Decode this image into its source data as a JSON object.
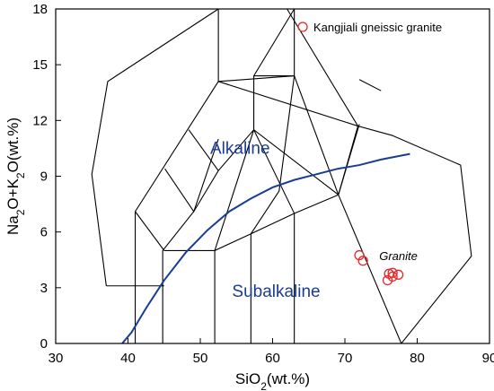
{
  "chart_data": {
    "type": "scatter",
    "title": "",
    "xlabel": {
      "prefix": "SiO",
      "sub": "2",
      "suffix": "(wt.%)"
    },
    "ylabel": {
      "parts": [
        [
          "Na",
          false
        ],
        [
          "2",
          true
        ],
        [
          "O+K",
          false
        ],
        [
          "2",
          true
        ],
        [
          "O(wt.%)",
          false
        ]
      ]
    },
    "xlim": [
      30,
      90
    ],
    "ylim": [
      0,
      18
    ],
    "xticks": [
      30,
      40,
      50,
      60,
      70,
      80,
      90
    ],
    "yticks": [
      0,
      3,
      6,
      9,
      12,
      15,
      18
    ],
    "grid": false,
    "legend": {
      "position": "top-right"
    },
    "colors": {
      "points": "#e8282a",
      "divider": "#1a3c96",
      "field_text": "#1a3c96",
      "lines": "#000000"
    },
    "series": [
      {
        "name": "Kangjiali gneissic granite",
        "marker": "open-circle",
        "points": [
          [
            72.0,
            4.75
          ],
          [
            72.5,
            4.45
          ],
          [
            75.9,
            3.4
          ],
          [
            76.1,
            3.75
          ],
          [
            76.6,
            3.6
          ],
          [
            76.6,
            3.8
          ],
          [
            77.4,
            3.7
          ]
        ]
      }
    ],
    "field_lines": [
      [
        [
          37,
          3.1
        ],
        [
          35,
          9.1
        ],
        [
          37.2,
          14.1
        ],
        [
          52.5,
          18
        ]
      ],
      [
        [
          37,
          3.1
        ],
        [
          45,
          3.1
        ]
      ],
      [
        [
          52.5,
          18
        ],
        [
          62,
          18
        ]
      ],
      [
        [
          62,
          18
        ],
        [
          71.8,
          11.7
        ],
        [
          76.5,
          11.2
        ],
        [
          86,
          9.6
        ],
        [
          87.5,
          4.7
        ],
        [
          77.8,
          0
        ]
      ],
      [
        [
          69.1,
          8
        ],
        [
          77.8,
          0
        ]
      ],
      [
        [
          41,
          0
        ],
        [
          41,
          7.1
        ],
        [
          52.5,
          14.1
        ],
        [
          71.8,
          11.7
        ]
      ],
      [
        [
          52.5,
          14.1
        ],
        [
          52.5,
          18
        ]
      ],
      [
        [
          44.8,
          0
        ],
        [
          44.8,
          5.0
        ],
        [
          49.1,
          7.1
        ],
        [
          52.5,
          9.3
        ],
        [
          57.4,
          11.5
        ],
        [
          69.1,
          8
        ],
        [
          71.8,
          11.7
        ]
      ],
      [
        [
          45.1,
          9.4
        ],
        [
          49.1,
          7.1
        ],
        [
          52.5,
          11.0
        ]
      ],
      [
        [
          48.4,
          11.5
        ],
        [
          52.5,
          9.3
        ]
      ],
      [
        [
          63,
          14.4
        ],
        [
          63,
          18
        ]
      ],
      [
        [
          57.4,
          11.5
        ],
        [
          57.4,
          14.4
        ],
        [
          63,
          18
        ]
      ],
      [
        [
          57.4,
          14.4
        ],
        [
          63,
          14.4
        ]
      ],
      [
        [
          52.5,
          14.1
        ],
        [
          63,
          14.4
        ]
      ],
      [
        [
          63,
          14.4
        ],
        [
          69.1,
          8
        ]
      ],
      [
        [
          52,
          5.0
        ],
        [
          52,
          0
        ]
      ],
      [
        [
          57,
          5.9
        ],
        [
          57,
          0
        ]
      ],
      [
        [
          63,
          7.0
        ],
        [
          63,
          0
        ]
      ],
      [
        [
          45,
          5.0
        ],
        [
          52,
          5.0
        ],
        [
          57,
          5.9
        ],
        [
          63,
          7.0
        ],
        [
          69.1,
          8
        ]
      ],
      [
        [
          41,
          7.1
        ],
        [
          45,
          5.0
        ]
      ],
      [
        [
          52,
          5.0
        ],
        [
          57.4,
          11.5
        ]
      ],
      [
        [
          57,
          5.9
        ],
        [
          60.9,
          8.2
        ],
        [
          63,
          14.4
        ]
      ],
      [
        [
          63,
          7.0
        ],
        [
          57.4,
          11.5
        ]
      ],
      [
        [
          72,
          14.2
        ],
        [
          75,
          13.6
        ]
      ],
      [
        [
          72,
          11.8
        ],
        [
          69.1,
          8
        ]
      ]
    ],
    "divider_curve": [
      [
        39.2,
        0
      ],
      [
        40.5,
        0.6
      ],
      [
        42.5,
        1.9
      ],
      [
        45,
        3.4
      ],
      [
        48,
        4.9
      ],
      [
        51,
        6.1
      ],
      [
        54,
        7.1
      ],
      [
        57,
        7.8
      ],
      [
        60,
        8.4
      ],
      [
        63,
        8.8
      ],
      [
        66,
        9.1
      ],
      [
        69,
        9.4
      ],
      [
        72,
        9.6
      ],
      [
        75,
        9.9
      ],
      [
        79,
        10.2
      ]
    ],
    "field_labels": [
      {
        "text": "Alkaline",
        "x": 55.5,
        "y": 10.2,
        "style": "normal"
      },
      {
        "text": "Subalkaline",
        "x": 60.5,
        "y": 2.5,
        "style": "normal"
      },
      {
        "text": "Granite",
        "x": 77.4,
        "y": 4.5,
        "style": "italic"
      }
    ]
  }
}
